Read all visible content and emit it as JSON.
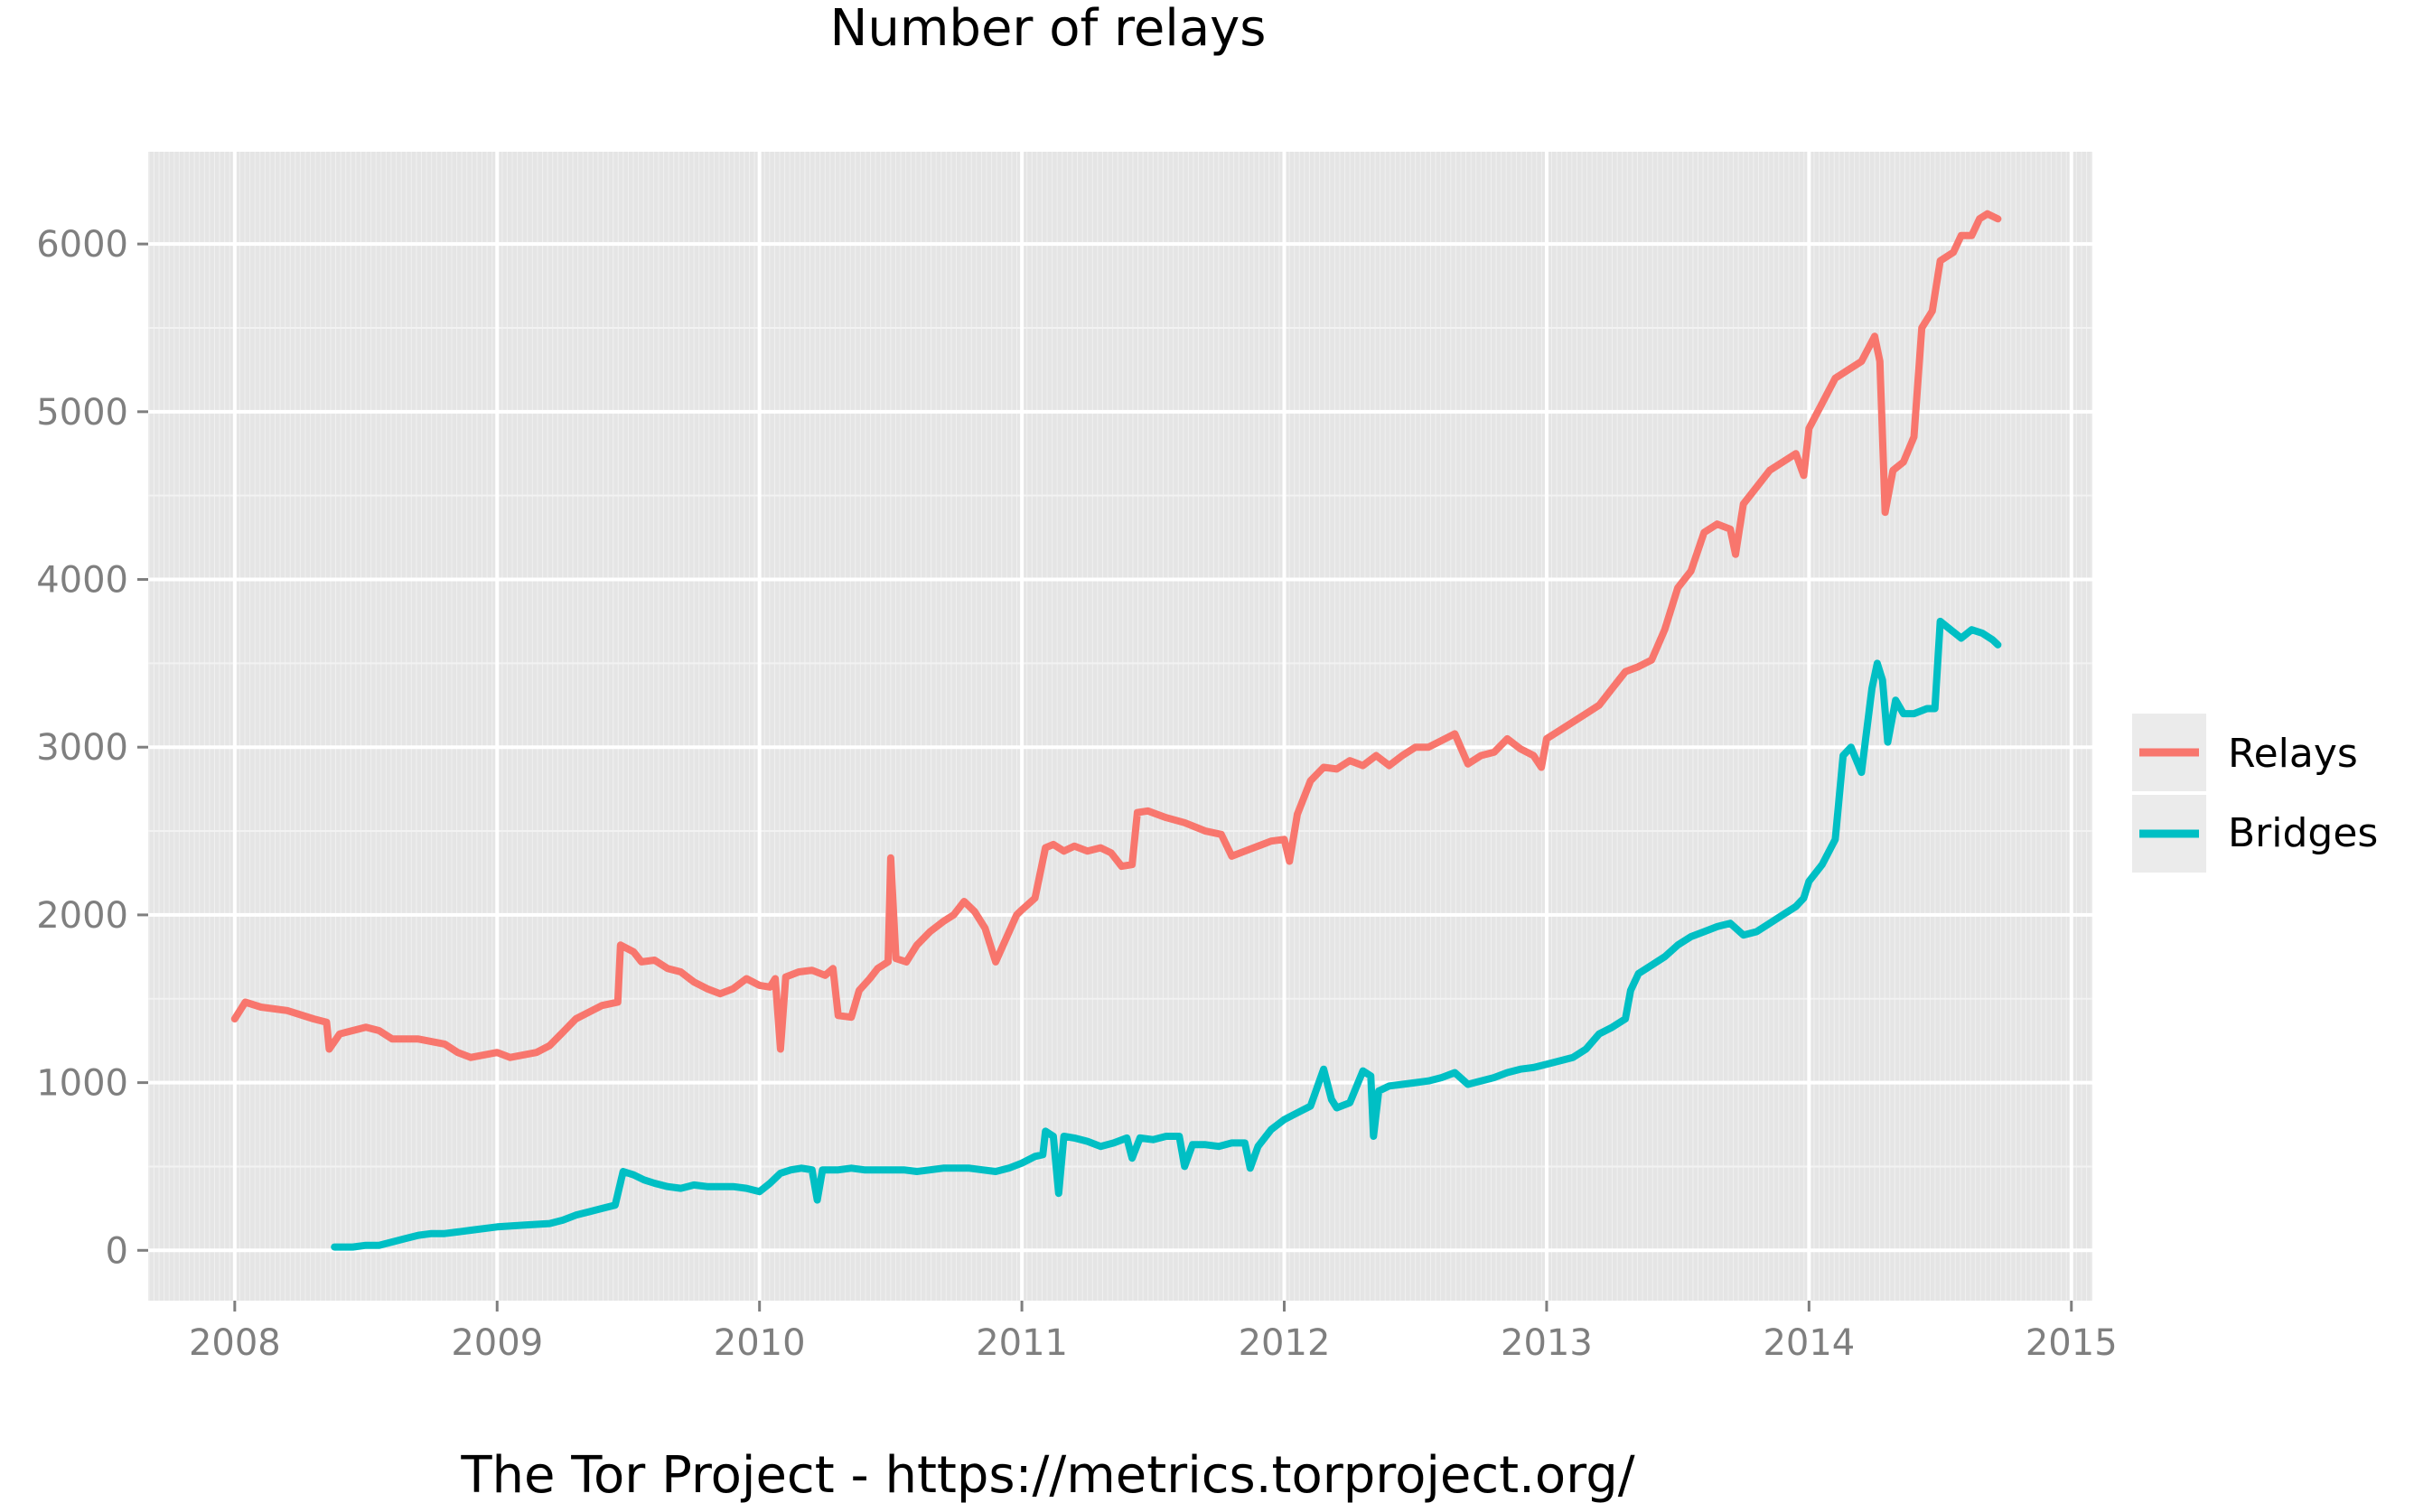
{
  "chart_data": {
    "type": "line",
    "title": "Number of relays",
    "caption": "The Tor Project - https://metrics.torproject.org/",
    "xlabel": "",
    "ylabel": "",
    "xlim": [
      2007.67,
      2015.08
    ],
    "ylim": [
      -300,
      6550
    ],
    "x_ticks": [
      2008,
      2009,
      2010,
      2011,
      2012,
      2013,
      2014,
      2015
    ],
    "x_tick_labels": [
      "2008",
      "2009",
      "2010",
      "2011",
      "2012",
      "2013",
      "2014",
      "2015"
    ],
    "y_ticks": [
      0,
      1000,
      2000,
      3000,
      4000,
      5000,
      6000
    ],
    "y_tick_labels": [
      "0",
      "1000",
      "2000",
      "3000",
      "4000",
      "5000",
      "6000"
    ],
    "grid": true,
    "legend_position": "right",
    "series": [
      {
        "name": "Relays",
        "color": "#F8766D",
        "points": [
          [
            2008.0,
            1380
          ],
          [
            2008.04,
            1480
          ],
          [
            2008.1,
            1450
          ],
          [
            2008.2,
            1430
          ],
          [
            2008.3,
            1380
          ],
          [
            2008.35,
            1360
          ],
          [
            2008.36,
            1200
          ],
          [
            2008.4,
            1290
          ],
          [
            2008.5,
            1330
          ],
          [
            2008.55,
            1310
          ],
          [
            2008.6,
            1260
          ],
          [
            2008.7,
            1260
          ],
          [
            2008.8,
            1230
          ],
          [
            2008.85,
            1180
          ],
          [
            2008.9,
            1150
          ],
          [
            2009.0,
            1180
          ],
          [
            2009.05,
            1150
          ],
          [
            2009.15,
            1180
          ],
          [
            2009.2,
            1220
          ],
          [
            2009.25,
            1300
          ],
          [
            2009.3,
            1380
          ],
          [
            2009.35,
            1420
          ],
          [
            2009.4,
            1460
          ],
          [
            2009.46,
            1480
          ],
          [
            2009.47,
            1820
          ],
          [
            2009.52,
            1780
          ],
          [
            2009.55,
            1720
          ],
          [
            2009.6,
            1730
          ],
          [
            2009.65,
            1680
          ],
          [
            2009.7,
            1660
          ],
          [
            2009.75,
            1600
          ],
          [
            2009.8,
            1560
          ],
          [
            2009.85,
            1530
          ],
          [
            2009.9,
            1560
          ],
          [
            2009.95,
            1620
          ],
          [
            2010.0,
            1580
          ],
          [
            2010.04,
            1570
          ],
          [
            2010.06,
            1620
          ],
          [
            2010.08,
            1200
          ],
          [
            2010.1,
            1630
          ],
          [
            2010.15,
            1660
          ],
          [
            2010.2,
            1670
          ],
          [
            2010.25,
            1640
          ],
          [
            2010.28,
            1680
          ],
          [
            2010.3,
            1400
          ],
          [
            2010.35,
            1390
          ],
          [
            2010.38,
            1550
          ],
          [
            2010.42,
            1620
          ],
          [
            2010.45,
            1680
          ],
          [
            2010.49,
            1720
          ],
          [
            2010.5,
            2340
          ],
          [
            2010.52,
            1740
          ],
          [
            2010.56,
            1720
          ],
          [
            2010.6,
            1820
          ],
          [
            2010.65,
            1900
          ],
          [
            2010.7,
            1960
          ],
          [
            2010.74,
            2000
          ],
          [
            2010.78,
            2080
          ],
          [
            2010.82,
            2020
          ],
          [
            2010.86,
            1920
          ],
          [
            2010.9,
            1720
          ],
          [
            2010.94,
            1860
          ],
          [
            2010.98,
            2000
          ],
          [
            2011.0,
            2030
          ],
          [
            2011.05,
            2100
          ],
          [
            2011.09,
            2400
          ],
          [
            2011.12,
            2420
          ],
          [
            2011.16,
            2380
          ],
          [
            2011.2,
            2410
          ],
          [
            2011.25,
            2380
          ],
          [
            2011.3,
            2400
          ],
          [
            2011.34,
            2370
          ],
          [
            2011.38,
            2290
          ],
          [
            2011.42,
            2300
          ],
          [
            2011.44,
            2610
          ],
          [
            2011.48,
            2620
          ],
          [
            2011.55,
            2580
          ],
          [
            2011.62,
            2550
          ],
          [
            2011.7,
            2500
          ],
          [
            2011.76,
            2480
          ],
          [
            2011.8,
            2350
          ],
          [
            2011.85,
            2380
          ],
          [
            2011.9,
            2410
          ],
          [
            2011.95,
            2440
          ],
          [
            2012.0,
            2450
          ],
          [
            2012.02,
            2320
          ],
          [
            2012.05,
            2600
          ],
          [
            2012.1,
            2800
          ],
          [
            2012.15,
            2880
          ],
          [
            2012.2,
            2870
          ],
          [
            2012.25,
            2920
          ],
          [
            2012.3,
            2890
          ],
          [
            2012.35,
            2950
          ],
          [
            2012.4,
            2890
          ],
          [
            2012.45,
            2950
          ],
          [
            2012.5,
            3000
          ],
          [
            2012.55,
            3000
          ],
          [
            2012.6,
            3040
          ],
          [
            2012.65,
            3080
          ],
          [
            2012.7,
            2900
          ],
          [
            2012.75,
            2950
          ],
          [
            2012.8,
            2970
          ],
          [
            2012.85,
            3050
          ],
          [
            2012.9,
            2990
          ],
          [
            2012.95,
            2950
          ],
          [
            2012.98,
            2880
          ],
          [
            2013.0,
            3050
          ],
          [
            2013.05,
            3100
          ],
          [
            2013.1,
            3150
          ],
          [
            2013.15,
            3200
          ],
          [
            2013.2,
            3250
          ],
          [
            2013.25,
            3350
          ],
          [
            2013.3,
            3450
          ],
          [
            2013.35,
            3480
          ],
          [
            2013.4,
            3520
          ],
          [
            2013.45,
            3700
          ],
          [
            2013.5,
            3950
          ],
          [
            2013.55,
            4050
          ],
          [
            2013.6,
            4280
          ],
          [
            2013.65,
            4330
          ],
          [
            2013.7,
            4300
          ],
          [
            2013.72,
            4150
          ],
          [
            2013.75,
            4450
          ],
          [
            2013.8,
            4550
          ],
          [
            2013.85,
            4650
          ],
          [
            2013.9,
            4700
          ],
          [
            2013.95,
            4750
          ],
          [
            2013.98,
            4620
          ],
          [
            2014.0,
            4900
          ],
          [
            2014.05,
            5050
          ],
          [
            2014.1,
            5200
          ],
          [
            2014.15,
            5250
          ],
          [
            2014.2,
            5300
          ],
          [
            2014.25,
            5450
          ],
          [
            2014.27,
            5300
          ],
          [
            2014.29,
            4400
          ],
          [
            2014.32,
            4650
          ],
          [
            2014.36,
            4700
          ],
          [
            2014.4,
            4850
          ],
          [
            2014.43,
            5500
          ],
          [
            2014.47,
            5600
          ],
          [
            2014.5,
            5900
          ],
          [
            2014.55,
            5950
          ],
          [
            2014.58,
            6050
          ],
          [
            2014.62,
            6050
          ],
          [
            2014.65,
            6150
          ],
          [
            2014.68,
            6180
          ],
          [
            2014.72,
            6150
          ]
        ]
      },
      {
        "name": "Bridges",
        "color": "#00BFC4",
        "points": [
          [
            2008.38,
            20
          ],
          [
            2008.45,
            20
          ],
          [
            2008.5,
            30
          ],
          [
            2008.55,
            30
          ],
          [
            2008.6,
            50
          ],
          [
            2008.65,
            70
          ],
          [
            2008.7,
            90
          ],
          [
            2008.75,
            100
          ],
          [
            2008.8,
            100
          ],
          [
            2008.85,
            110
          ],
          [
            2008.9,
            120
          ],
          [
            2009.0,
            140
          ],
          [
            2009.1,
            150
          ],
          [
            2009.2,
            160
          ],
          [
            2009.25,
            180
          ],
          [
            2009.3,
            210
          ],
          [
            2009.35,
            230
          ],
          [
            2009.4,
            250
          ],
          [
            2009.45,
            270
          ],
          [
            2009.48,
            470
          ],
          [
            2009.52,
            450
          ],
          [
            2009.56,
            420
          ],
          [
            2009.6,
            400
          ],
          [
            2009.65,
            380
          ],
          [
            2009.7,
            370
          ],
          [
            2009.75,
            390
          ],
          [
            2009.8,
            380
          ],
          [
            2009.85,
            380
          ],
          [
            2009.9,
            380
          ],
          [
            2009.95,
            370
          ],
          [
            2010.0,
            350
          ],
          [
            2010.04,
            400
          ],
          [
            2010.08,
            460
          ],
          [
            2010.12,
            480
          ],
          [
            2010.16,
            490
          ],
          [
            2010.2,
            480
          ],
          [
            2010.22,
            300
          ],
          [
            2010.24,
            480
          ],
          [
            2010.3,
            480
          ],
          [
            2010.35,
            490
          ],
          [
            2010.4,
            480
          ],
          [
            2010.45,
            480
          ],
          [
            2010.5,
            480
          ],
          [
            2010.55,
            480
          ],
          [
            2010.6,
            470
          ],
          [
            2010.65,
            480
          ],
          [
            2010.7,
            490
          ],
          [
            2010.75,
            490
          ],
          [
            2010.8,
            490
          ],
          [
            2010.85,
            480
          ],
          [
            2010.9,
            470
          ],
          [
            2010.95,
            490
          ],
          [
            2011.0,
            520
          ],
          [
            2011.05,
            560
          ],
          [
            2011.08,
            570
          ],
          [
            2011.09,
            710
          ],
          [
            2011.12,
            680
          ],
          [
            2011.14,
            340
          ],
          [
            2011.16,
            680
          ],
          [
            2011.2,
            670
          ],
          [
            2011.25,
            650
          ],
          [
            2011.3,
            620
          ],
          [
            2011.35,
            640
          ],
          [
            2011.4,
            670
          ],
          [
            2011.42,
            550
          ],
          [
            2011.45,
            670
          ],
          [
            2011.5,
            660
          ],
          [
            2011.55,
            680
          ],
          [
            2011.6,
            680
          ],
          [
            2011.62,
            500
          ],
          [
            2011.65,
            630
          ],
          [
            2011.7,
            630
          ],
          [
            2011.75,
            620
          ],
          [
            2011.8,
            640
          ],
          [
            2011.85,
            640
          ],
          [
            2011.87,
            490
          ],
          [
            2011.9,
            620
          ],
          [
            2011.95,
            720
          ],
          [
            2012.0,
            780
          ],
          [
            2012.05,
            820
          ],
          [
            2012.1,
            860
          ],
          [
            2012.15,
            1080
          ],
          [
            2012.18,
            900
          ],
          [
            2012.2,
            850
          ],
          [
            2012.25,
            880
          ],
          [
            2012.3,
            1070
          ],
          [
            2012.33,
            1040
          ],
          [
            2012.34,
            680
          ],
          [
            2012.36,
            950
          ],
          [
            2012.4,
            980
          ],
          [
            2012.45,
            990
          ],
          [
            2012.5,
            1000
          ],
          [
            2012.55,
            1010
          ],
          [
            2012.6,
            1030
          ],
          [
            2012.65,
            1060
          ],
          [
            2012.7,
            990
          ],
          [
            2012.75,
            1010
          ],
          [
            2012.8,
            1030
          ],
          [
            2012.85,
            1060
          ],
          [
            2012.9,
            1080
          ],
          [
            2012.95,
            1090
          ],
          [
            2013.0,
            1110
          ],
          [
            2013.05,
            1130
          ],
          [
            2013.1,
            1150
          ],
          [
            2013.15,
            1200
          ],
          [
            2013.2,
            1290
          ],
          [
            2013.25,
            1330
          ],
          [
            2013.3,
            1380
          ],
          [
            2013.32,
            1550
          ],
          [
            2013.35,
            1650
          ],
          [
            2013.4,
            1700
          ],
          [
            2013.45,
            1750
          ],
          [
            2013.5,
            1820
          ],
          [
            2013.55,
            1870
          ],
          [
            2013.6,
            1900
          ],
          [
            2013.65,
            1930
          ],
          [
            2013.7,
            1950
          ],
          [
            2013.75,
            1880
          ],
          [
            2013.8,
            1900
          ],
          [
            2013.85,
            1950
          ],
          [
            2013.9,
            2000
          ],
          [
            2013.95,
            2050
          ],
          [
            2013.98,
            2100
          ],
          [
            2014.0,
            2200
          ],
          [
            2014.05,
            2300
          ],
          [
            2014.1,
            2450
          ],
          [
            2014.13,
            2950
          ],
          [
            2014.16,
            3000
          ],
          [
            2014.2,
            2850
          ],
          [
            2014.24,
            3350
          ],
          [
            2014.26,
            3500
          ],
          [
            2014.28,
            3400
          ],
          [
            2014.3,
            3030
          ],
          [
            2014.33,
            3280
          ],
          [
            2014.36,
            3200
          ],
          [
            2014.4,
            3200
          ],
          [
            2014.45,
            3230
          ],
          [
            2014.48,
            3230
          ],
          [
            2014.5,
            3750
          ],
          [
            2014.54,
            3700
          ],
          [
            2014.58,
            3650
          ],
          [
            2014.62,
            3700
          ],
          [
            2014.66,
            3680
          ],
          [
            2014.7,
            3640
          ],
          [
            2014.72,
            3610
          ]
        ]
      }
    ]
  }
}
